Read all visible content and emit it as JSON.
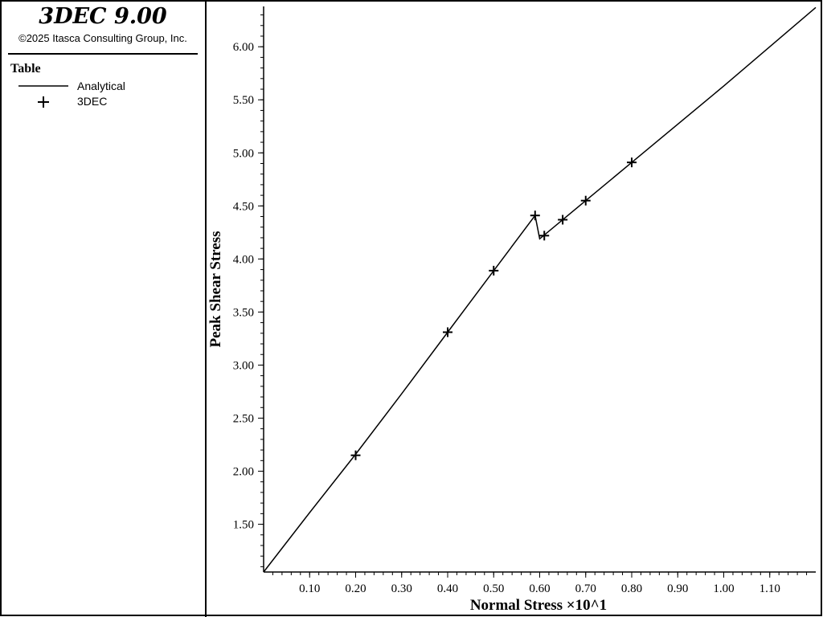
{
  "header": {
    "app_title": "3DEC 9.00",
    "copyright": "©2025 Itasca Consulting Group, Inc."
  },
  "legend": {
    "title": "Table",
    "items": [
      {
        "label": "Analytical",
        "symbol": "line"
      },
      {
        "label": "3DEC",
        "symbol": "plus"
      }
    ]
  },
  "chart_data": {
    "type": "line",
    "xlabel": "Normal Stress ×10^1",
    "ylabel": "Peak Shear Stress",
    "xlim": [
      0.0,
      1.2
    ],
    "ylim": [
      1.05,
      6.38
    ],
    "x_ticks": [
      "0.10",
      "0.20",
      "0.30",
      "0.40",
      "0.50",
      "0.60",
      "0.70",
      "0.80",
      "0.90",
      "1.00",
      "1.10"
    ],
    "y_ticks": [
      "1.50",
      "2.00",
      "2.50",
      "3.00",
      "3.50",
      "4.00",
      "4.50",
      "5.00",
      "5.50",
      "6.00"
    ],
    "grid": false,
    "colors": {
      "line": "#000000",
      "marker": "#000000",
      "axis": "#000000"
    },
    "series": [
      {
        "name": "Analytical",
        "style": "line",
        "points": [
          [
            0.0,
            1.05
          ],
          [
            0.1,
            1.61
          ],
          [
            0.2,
            2.16
          ],
          [
            0.3,
            2.73
          ],
          [
            0.4,
            3.31
          ],
          [
            0.5,
            3.89
          ],
          [
            0.59,
            4.41
          ],
          [
            0.6,
            4.19
          ],
          [
            0.7,
            4.55
          ],
          [
            0.8,
            4.91
          ],
          [
            1.0,
            5.63
          ],
          [
            1.2,
            6.37
          ]
        ]
      },
      {
        "name": "3DEC",
        "style": "plus",
        "points": [
          [
            0.2,
            2.15
          ],
          [
            0.4,
            3.31
          ],
          [
            0.5,
            3.89
          ],
          [
            0.59,
            4.41
          ],
          [
            0.61,
            4.22
          ],
          [
            0.65,
            4.37
          ],
          [
            0.7,
            4.55
          ],
          [
            0.8,
            4.91
          ]
        ]
      }
    ]
  }
}
